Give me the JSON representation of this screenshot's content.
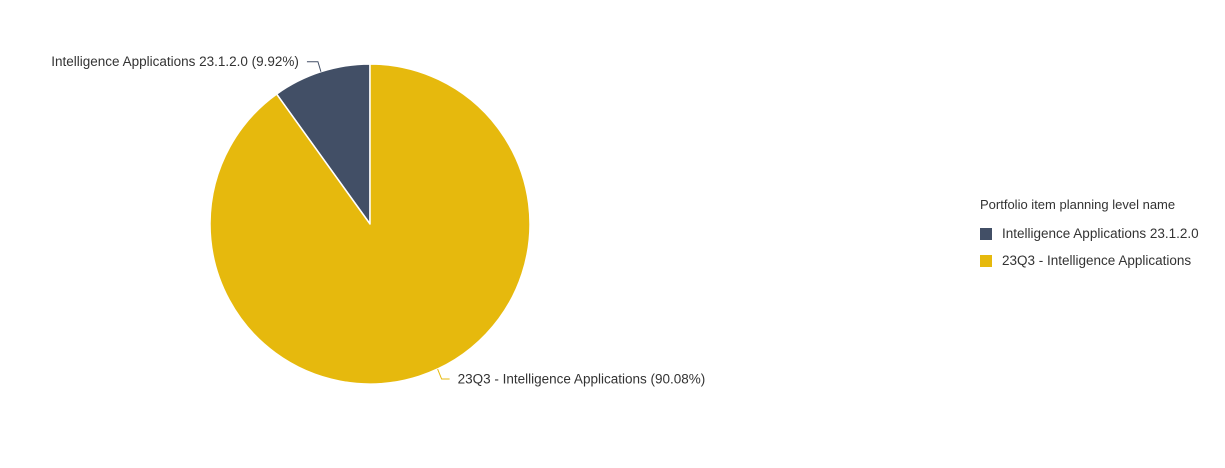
{
  "chart_data": {
    "type": "pie",
    "legend_title": "Portfolio item planning level name",
    "legend_position": "right",
    "slices": [
      {
        "name": "Intelligence Applications 23.1.2.0",
        "percent": 9.92,
        "label": "Intelligence Applications 23.1.2.0 (9.92%)",
        "color": "#424f66"
      },
      {
        "name": "23Q3 - Intelligence Applications",
        "percent": 90.08,
        "label": "23Q3 - Intelligence Applications (90.08%)",
        "color": "#e6b90d"
      }
    ]
  }
}
